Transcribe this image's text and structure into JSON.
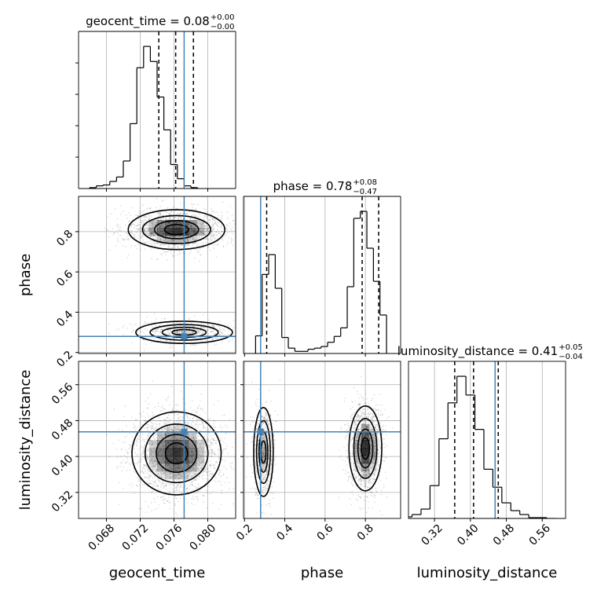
{
  "chart_data": {
    "type": "corner",
    "parameters": [
      "geocent_time",
      "phase",
      "luminosity_distance"
    ],
    "axis_labels": {
      "geocent_time": "geocent_time",
      "phase": "phase",
      "luminosity_distance": "luminosity_distance"
    },
    "ranges": {
      "geocent_time": [
        0.0647,
        0.0833
      ],
      "phase": [
        0.195,
        0.975
      ],
      "luminosity_distance": [
        0.262,
        0.612
      ]
    },
    "ticks": {
      "geocent_time": [
        0.068,
        0.072,
        0.076,
        0.08
      ],
      "phase": [
        0.2,
        0.4,
        0.6,
        0.8
      ],
      "luminosity_distance": [
        0.32,
        0.4,
        0.48,
        0.56
      ]
    },
    "tick_labels": {
      "geocent_time": [
        "0.068",
        "0.072",
        "0.076",
        "0.080"
      ],
      "phase": [
        "0.2",
        "0.4",
        "0.6",
        "0.8"
      ],
      "luminosity_distance": [
        "0.32",
        "0.40",
        "0.48",
        "0.56"
      ]
    },
    "titles": [
      {
        "param": "geocent_time",
        "name": "geocent_time",
        "value": "0.08",
        "upper": "+0.00",
        "lower": "−0.00"
      },
      {
        "param": "phase",
        "name": "phase",
        "value": "0.78",
        "upper": "+0.08",
        "lower": "−0.47"
      },
      {
        "param": "luminosity_distance",
        "name": "luminosity_distance",
        "value": "0.41",
        "upper": "+0.05",
        "lower": "−0.04"
      }
    ],
    "truths": {
      "geocent_time": 0.0772,
      "phase": 0.28,
      "luminosity_distance": 0.455
    },
    "quantiles": {
      "geocent_time": [
        0.0742,
        0.0762,
        0.0783
      ],
      "phase": [
        0.31,
        0.784,
        0.866
      ],
      "luminosity_distance": [
        0.365,
        0.407,
        0.462
      ]
    },
    "histograms": {
      "geocent_time": {
        "bin_start": 0.066,
        "bin_width": 0.0008,
        "counts": [
          1,
          3,
          4,
          8,
          13,
          31,
          73,
          136,
          160,
          143,
          103,
          66,
          27,
          11,
          3,
          1
        ]
      },
      "phase": {
        "bin_start": 0.255,
        "bin_width": 0.0325,
        "counts": [
          33,
          148,
          185,
          122,
          30,
          10,
          4,
          4,
          8,
          10,
          13,
          21,
          32,
          48,
          125,
          253,
          266,
          197,
          135,
          72
        ]
      },
      "luminosity_distance": {
        "bin_start": 0.25,
        "bin_width": 0.02,
        "counts": [
          2,
          5,
          12,
          42,
          102,
          148,
          182,
          158,
          114,
          63,
          40,
          20,
          10,
          5,
          1,
          1,
          0
        ]
      }
    },
    "density_2d": [
      {
        "x": "geocent_time",
        "y": "phase",
        "modes": [
          {
            "x": 0.0763,
            "y": 0.81,
            "sx": 0.0026,
            "sy": 0.045,
            "weight": 0.72
          },
          {
            "x": 0.0772,
            "y": 0.3,
            "sx": 0.0026,
            "sy": 0.025,
            "weight": 0.28
          }
        ]
      },
      {
        "x": "geocent_time",
        "y": "luminosity_distance",
        "modes": [
          {
            "x": 0.0763,
            "y": 0.407,
            "sx": 0.0024,
            "sy": 0.042,
            "weight": 1.0
          }
        ]
      },
      {
        "x": "phase",
        "y": "luminosity_distance",
        "modes": [
          {
            "x": 0.294,
            "y": 0.41,
            "sx": 0.022,
            "sy": 0.045,
            "weight": 0.35
          },
          {
            "x": 0.8,
            "y": 0.418,
            "sx": 0.037,
            "sy": 0.043,
            "weight": 0.65
          }
        ]
      }
    ],
    "colors": {
      "truth": "#4682b4",
      "grid": "#b0b0b0",
      "hist": "#000000"
    },
    "grid": true
  }
}
